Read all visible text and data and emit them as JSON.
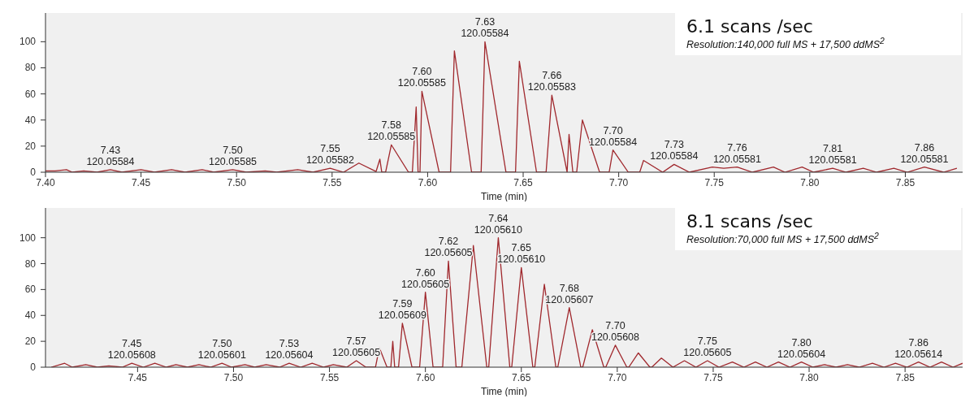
{
  "chart_data": [
    {
      "type": "line",
      "title": "6.1 scans /sec",
      "subtitle": "Resolution:140,000 full MS + 17,500 ddMS$^{2}$",
      "xlabel": "Time (min)",
      "xlim": [
        7.4,
        7.88
      ],
      "xticks": [
        {
          "value": 7.4,
          "label": "7.40"
        },
        7.45,
        {
          "value": 7.5,
          "label": "7.50"
        },
        7.55,
        {
          "value": 7.6,
          "label": "7.60"
        },
        7.65,
        {
          "value": 7.7,
          "label": "7.70"
        },
        7.75,
        {
          "value": 7.8,
          "label": "7.80"
        },
        7.85
      ],
      "ylim": [
        0,
        122
      ],
      "yticks": [
        0,
        20,
        40,
        60,
        80,
        100
      ],
      "grid": false,
      "legend": false,
      "marker": "none",
      "line_style": "solid",
      "series": [
        {
          "color": "#a0282d",
          "x": [
            7.4,
            7.405,
            7.411,
            7.414,
            7.42,
            7.427,
            7.434,
            7.44,
            7.45,
            7.457,
            7.466,
            7.473,
            7.482,
            7.488,
            7.498,
            7.505,
            7.515,
            7.521,
            7.532,
            7.54,
            7.549,
            7.556,
            7.564,
            7.573,
            7.575,
            7.576,
            7.578,
            7.581,
            7.59,
            7.592,
            7.594,
            7.595,
            7.596,
            7.597,
            7.606,
            7.612,
            7.614,
            7.623,
            7.628,
            7.63,
            7.641,
            7.646,
            7.648,
            7.657,
            7.662,
            7.665,
            7.673,
            7.674,
            7.676,
            7.678,
            7.681,
            7.69,
            7.695,
            7.697,
            7.705,
            7.711,
            7.713,
            7.723,
            7.729,
            7.737,
            7.749,
            7.755,
            7.762,
            7.77,
            7.781,
            7.787,
            7.796,
            7.802,
            7.812,
            7.819,
            7.828,
            7.835,
            7.844,
            7.851,
            7.86,
            7.87,
            7.877
          ],
          "values": [
            1,
            1,
            2,
            0,
            1,
            0,
            2,
            0,
            2,
            0,
            2,
            0,
            2,
            0,
            2,
            0,
            1,
            0,
            2,
            0,
            3,
            0,
            7,
            0.5,
            10,
            0,
            0,
            21,
            0,
            0,
            50,
            0,
            0,
            62,
            0,
            0,
            93,
            0,
            0,
            100,
            0,
            0,
            85,
            0,
            0,
            59,
            0,
            29,
            0,
            0,
            40,
            0,
            0,
            17,
            0,
            0,
            9,
            0,
            6,
            0,
            4,
            3,
            4,
            0,
            4,
            0,
            4,
            0,
            3,
            0,
            3,
            0,
            3,
            0,
            4,
            0,
            3
          ]
        }
      ],
      "annotations": [
        {
          "text": "7.43\n120.05584",
          "x": 7.434,
          "y": 2
        },
        {
          "text": "7.50\n120.05585",
          "x": 7.498,
          "y": 2
        },
        {
          "text": "7.55\n120.05582",
          "x": 7.549,
          "y": 3
        },
        {
          "text": "7.58\n120.05585",
          "x": 7.581,
          "y": 21
        },
        {
          "text": "7.60\n120.05585",
          "x": 7.597,
          "y": 62
        },
        {
          "text": "7.63\n120.05584",
          "x": 7.63,
          "y": 100
        },
        {
          "text": "7.66\n120.05583",
          "x": 7.665,
          "y": 59
        },
        {
          "text": "7.70\n120.05584",
          "x": 7.697,
          "y": 17
        },
        {
          "text": "7.73\n120.05584",
          "x": 7.729,
          "y": 6
        },
        {
          "text": "7.76\n120.05581",
          "x": 7.762,
          "y": 4
        },
        {
          "text": "7.81\n120.05581",
          "x": 7.812,
          "y": 3
        },
        {
          "text": "7.86\n120.05581",
          "x": 7.86,
          "y": 4
        }
      ]
    },
    {
      "type": "line",
      "title": "8.1 scans /sec",
      "subtitle": "Resolution:70,000 full MS + 17,500 ddMS$^{2}$",
      "xlabel": "Time (min)",
      "xlim": [
        7.402,
        7.88
      ],
      "xticks": [
        7.45,
        {
          "value": 7.5,
          "label": "7.50"
        },
        7.55,
        {
          "value": 7.6,
          "label": "7.60"
        },
        7.65,
        {
          "value": 7.7,
          "label": "7.70"
        },
        7.75,
        {
          "value": 7.8,
          "label": "7.80"
        },
        7.85
      ],
      "ylim": [
        0,
        123
      ],
      "yticks": [
        0,
        20,
        40,
        60,
        80,
        100
      ],
      "grid": false,
      "legend": false,
      "marker": "none",
      "line_style": "solid",
      "series": [
        {
          "color": "#a0282d",
          "x": [
            7.405,
            7.412,
            7.416,
            7.423,
            7.429,
            7.435,
            7.442,
            7.447,
            7.453,
            7.459,
            7.465,
            7.47,
            7.476,
            7.482,
            7.488,
            7.494,
            7.499,
            7.506,
            7.511,
            7.517,
            7.524,
            7.529,
            7.535,
            7.541,
            7.547,
            7.552,
            7.559,
            7.564,
            7.569,
            7.574,
            7.576,
            7.58,
            7.582,
            7.583,
            7.584,
            7.586,
            7.588,
            7.593,
            7.597,
            7.6,
            7.604,
            7.609,
            7.612,
            7.616,
            7.619,
            7.625,
            7.632,
            7.633,
            7.638,
            7.644,
            7.645,
            7.65,
            7.656,
            7.657,
            7.662,
            7.668,
            7.669,
            7.675,
            7.681,
            7.682,
            7.687,
            7.693,
            7.694,
            7.699,
            7.705,
            7.706,
            7.711,
            7.717,
            7.718,
            7.723,
            7.729,
            7.735,
            7.741,
            7.747,
            7.753,
            7.76,
            7.766,
            7.772,
            7.778,
            7.784,
            7.79,
            7.796,
            7.802,
            7.808,
            7.814,
            7.82,
            7.826,
            7.833,
            7.839,
            7.845,
            7.851,
            7.857,
            7.863,
            7.869,
            7.875,
            7.88
          ],
          "values": [
            0,
            3,
            0,
            2,
            0,
            1,
            0,
            3,
            0,
            3,
            0,
            2,
            0,
            2,
            0,
            3,
            0,
            2,
            0,
            2,
            0,
            3,
            0,
            3,
            0,
            2,
            0,
            5,
            0,
            0,
            15,
            0,
            0,
            20,
            0,
            0,
            34,
            0,
            0,
            58,
            0,
            0,
            82,
            0,
            0,
            94,
            0,
            0,
            100,
            0,
            0,
            77,
            0,
            0,
            64,
            0,
            0,
            46,
            0,
            0,
            29,
            0,
            0,
            17,
            0,
            0,
            11,
            0,
            0,
            7,
            0,
            5,
            0,
            5,
            0,
            4,
            0,
            4,
            0,
            4,
            0,
            4,
            0,
            2,
            0,
            2,
            0,
            3,
            0,
            3,
            0,
            4,
            0,
            4,
            0,
            3
          ]
        }
      ],
      "annotations": [
        {
          "text": "7.45\n120.05608",
          "x": 7.447,
          "y": 3
        },
        {
          "text": "7.50\n120.05601",
          "x": 7.494,
          "y": 3
        },
        {
          "text": "7.53\n120.05604",
          "x": 7.529,
          "y": 3
        },
        {
          "text": "7.57\n120.05605",
          "x": 7.564,
          "y": 5
        },
        {
          "text": "7.59\n120.05609",
          "x": 7.588,
          "y": 34
        },
        {
          "text": "7.60\n120.05605",
          "x": 7.6,
          "y": 58
        },
        {
          "text": "7.62\n120.05605",
          "x": 7.612,
          "y": 82
        },
        {
          "text": "7.64\n120.05610",
          "x": 7.638,
          "y": 100
        },
        {
          "text": "7.65\n120.05610",
          "x": 7.65,
          "y": 77
        },
        {
          "text": "7.68\n120.05607",
          "x": 7.675,
          "y": 46
        },
        {
          "text": "7.70\n120.05608",
          "x": 7.699,
          "y": 17
        },
        {
          "text": "7.75\n120.05605",
          "x": 7.747,
          "y": 5
        },
        {
          "text": "7.80\n120.05604",
          "x": 7.796,
          "y": 4
        },
        {
          "text": "7.86\n120.05614",
          "x": 7.857,
          "y": 4
        }
      ]
    }
  ]
}
